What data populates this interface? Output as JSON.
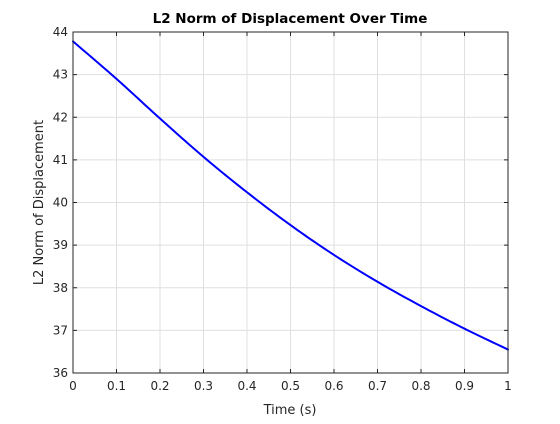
{
  "chart_data": {
    "type": "line",
    "title": "L2 Norm of Displacement Over Time",
    "xlabel": "Time (s)",
    "ylabel": "L2 Norm of Displacement",
    "xlim": [
      0,
      1
    ],
    "ylim": [
      36,
      44
    ],
    "xticks": [
      0,
      0.1,
      0.2,
      0.3,
      0.4,
      0.5,
      0.6,
      0.7,
      0.8,
      0.9,
      1
    ],
    "xtick_labels": [
      "0",
      "0.1",
      "0.2",
      "0.3",
      "0.4",
      "0.5",
      "0.6",
      "0.7",
      "0.8",
      "0.9",
      "1"
    ],
    "yticks": [
      36,
      37,
      38,
      39,
      40,
      41,
      42,
      43,
      44
    ],
    "ytick_labels": [
      "36",
      "37",
      "38",
      "39",
      "40",
      "41",
      "42",
      "43",
      "44"
    ],
    "grid": true,
    "series": [
      {
        "color": "#0000ff",
        "x": [
          0,
          0.1,
          0.2,
          0.3,
          0.4,
          0.5,
          0.6,
          0.7,
          0.8,
          0.9,
          1.0
        ],
        "y": [
          43.78,
          42.9,
          41.97,
          41.07,
          40.24,
          39.47,
          38.77,
          38.14,
          37.57,
          37.04,
          36.55
        ]
      }
    ]
  }
}
